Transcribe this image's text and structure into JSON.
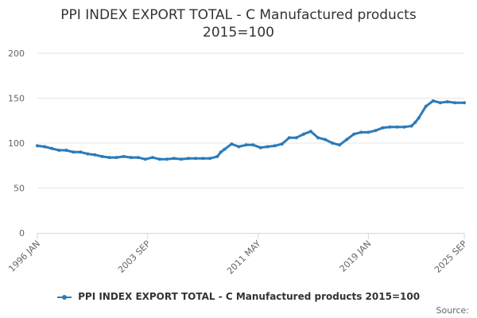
{
  "title_line1": "PPI INDEX EXPORT TOTAL - C Manufactured products",
  "title_line2": "2015=100",
  "legend_label": "PPI INDEX EXPORT TOTAL - C Manufactured products 2015=100",
  "source_label": "Source:",
  "colors": {
    "series": "#2b7bb9",
    "grid": "#e6e6e6",
    "axis": "#ccd6eb",
    "text": "#666666"
  },
  "chart_data": {
    "type": "line",
    "title": "PPI INDEX EXPORT TOTAL - C Manufactured products 2015=100",
    "xlabel": "",
    "ylabel": "",
    "ylim": [
      0,
      200
    ],
    "xlim": [
      "1996-01",
      "2025-09"
    ],
    "yticks": [
      "0",
      "50",
      "100",
      "150",
      "200"
    ],
    "xticks": [
      "1996 JAN",
      "2003 SEP",
      "2011 MAY",
      "2019 JAN",
      "2025 SEP"
    ],
    "grid": true,
    "legend_position": "bottom",
    "series": [
      {
        "name": "PPI INDEX EXPORT TOTAL - C Manufactured products 2015=100",
        "x": [
          "1996-01",
          "1996-07",
          "1997-01",
          "1997-07",
          "1998-01",
          "1998-07",
          "1999-01",
          "1999-07",
          "2000-01",
          "2000-07",
          "2001-01",
          "2001-07",
          "2002-01",
          "2002-07",
          "2003-01",
          "2003-07",
          "2004-01",
          "2004-07",
          "2005-01",
          "2005-07",
          "2006-01",
          "2006-07",
          "2007-01",
          "2007-07",
          "2008-01",
          "2008-07",
          "2008-10",
          "2009-01",
          "2009-07",
          "2010-01",
          "2010-07",
          "2011-01",
          "2011-07",
          "2012-01",
          "2012-07",
          "2013-01",
          "2013-07",
          "2014-01",
          "2014-07",
          "2015-01",
          "2015-07",
          "2016-01",
          "2016-07",
          "2017-01",
          "2017-07",
          "2018-01",
          "2018-07",
          "2019-01",
          "2019-07",
          "2020-01",
          "2020-07",
          "2021-01",
          "2021-07",
          "2022-01",
          "2022-04",
          "2022-07",
          "2023-01",
          "2023-07",
          "2024-01",
          "2024-07",
          "2025-01",
          "2025-09"
        ],
        "values": [
          97,
          96,
          94,
          92,
          92,
          90,
          90,
          88,
          87,
          85,
          84,
          84,
          85,
          84,
          84,
          82,
          84,
          82,
          82,
          83,
          82,
          83,
          83,
          83,
          83,
          85,
          90,
          93,
          99,
          96,
          98,
          98,
          95,
          96,
          97,
          99,
          106,
          106,
          110,
          113,
          106,
          104,
          100,
          98,
          104,
          110,
          112,
          112,
          114,
          117,
          118,
          118,
          118,
          119,
          123,
          128,
          141,
          147,
          145,
          146,
          145,
          145
        ]
      }
    ]
  }
}
